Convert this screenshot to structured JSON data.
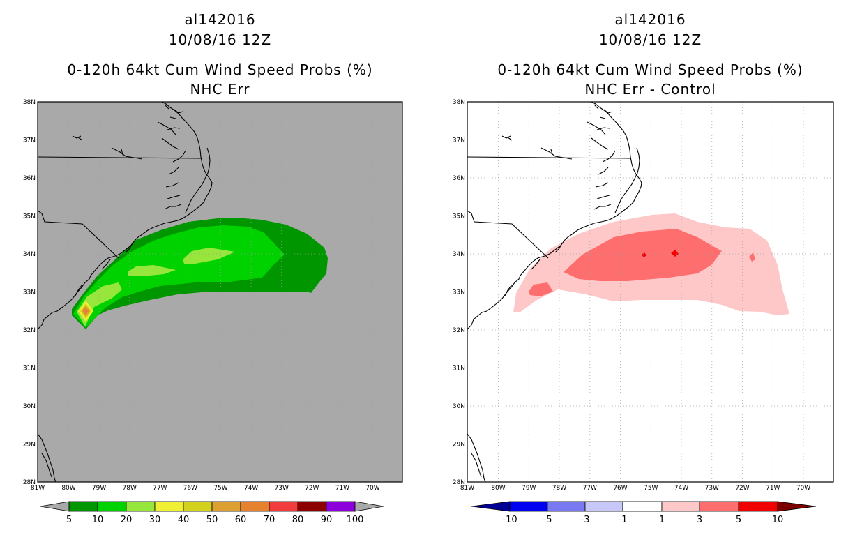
{
  "colors": {
    "land_left": "#a9a9a9",
    "grid": "#a0a0a0",
    "coast": "#000000",
    "prob_palette": [
      "#009600",
      "#00d200",
      "#96e63c",
      "#f0f032",
      "#d2d21e",
      "#dca032",
      "#e6822d",
      "#f03c3c",
      "#8c0000",
      "#8c00dc"
    ],
    "diff_palette": [
      "#000096",
      "#0000f0",
      "#7878f0",
      "#c8c8f8",
      "#ffffff",
      "#ffc8c8",
      "#ff6e6e",
      "#f00000",
      "#7d0000"
    ]
  },
  "left_panel": {
    "storm_id": "al142016",
    "datetime": "10/08/16 12Z",
    "product": "0-120h 64kt Cum Wind Speed Probs (%)",
    "subtitle": "NHC Err",
    "lat_labels": [
      "38N",
      "37N",
      "36N",
      "35N",
      "34N",
      "33N",
      "32N",
      "31N",
      "30N",
      "29N",
      "28N"
    ],
    "lon_labels": [
      "81W",
      "80W",
      "79W",
      "78W",
      "77W",
      "76W",
      "75W",
      "74W",
      "73W",
      "72W",
      "71W",
      "70W"
    ],
    "colorbar_labels": [
      "5",
      "10",
      "20",
      "30",
      "40",
      "50",
      "60",
      "70",
      "80",
      "90",
      "100"
    ]
  },
  "right_panel": {
    "storm_id": "al142016",
    "datetime": "10/08/16 12Z",
    "product": "0-120h 64kt Cum Wind Speed Probs (%)",
    "subtitle": "NHC Err - Control",
    "lat_labels": [
      "38N",
      "37N",
      "36N",
      "35N",
      "34N",
      "33N",
      "32N",
      "31N",
      "30N",
      "29N",
      "28N"
    ],
    "lon_labels": [
      "81W",
      "80W",
      "79W",
      "78W",
      "77W",
      "76W",
      "75W",
      "74W",
      "73W",
      "72W",
      "71W",
      "70W"
    ],
    "colorbar_labels": [
      "-10",
      "-5",
      "-3",
      "-1",
      "1",
      "3",
      "5",
      "10"
    ]
  }
}
